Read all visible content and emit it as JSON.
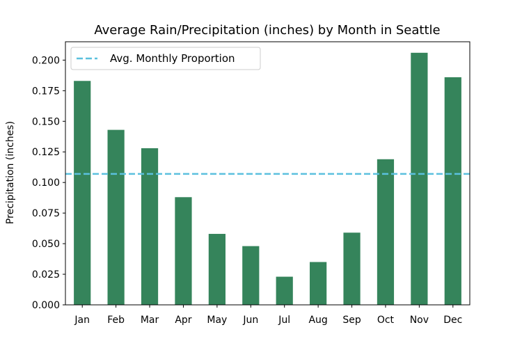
{
  "chart_data": {
    "type": "bar",
    "title": "Average Rain/Precipitation (inches) by Month in Seattle",
    "xlabel": "",
    "ylabel": "Precipitation (inches)",
    "categories": [
      "Jan",
      "Feb",
      "Mar",
      "Apr",
      "May",
      "Jun",
      "Jul",
      "Aug",
      "Sep",
      "Oct",
      "Nov",
      "Dec"
    ],
    "values": [
      0.183,
      0.143,
      0.128,
      0.088,
      0.058,
      0.048,
      0.023,
      0.035,
      0.059,
      0.119,
      0.206,
      0.186
    ],
    "ylim": [
      0,
      0.215
    ],
    "yticks": [
      0.0,
      0.025,
      0.05,
      0.075,
      0.1,
      0.125,
      0.15,
      0.175,
      0.2
    ],
    "ytick_labels": [
      "0.000",
      "0.025",
      "0.050",
      "0.075",
      "0.100",
      "0.125",
      "0.150",
      "0.175",
      "0.200"
    ],
    "reference_line": {
      "name": "Avg. Monthly Proportion",
      "value": 0.107,
      "style": "dashed",
      "color": "#5bc0de"
    },
    "bar_color": "#35845b",
    "legend": {
      "placement": "top-left",
      "entries": [
        "Avg. Monthly Proportion"
      ]
    },
    "grid": false
  }
}
